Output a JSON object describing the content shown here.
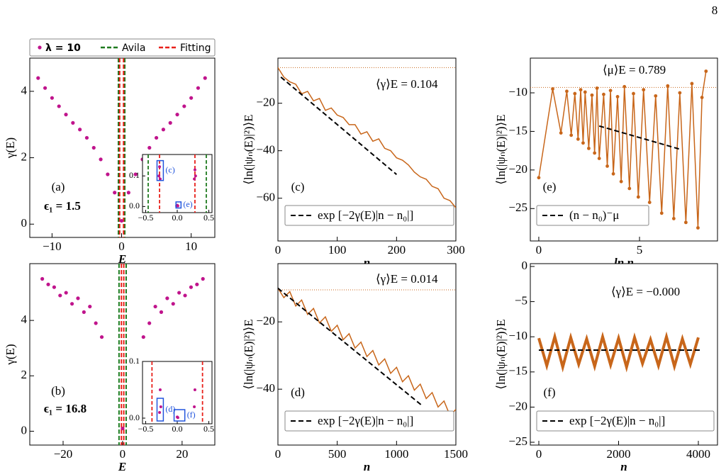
{
  "page_number": "8",
  "chart_data": [
    {
      "type": "scatter",
      "label": "(a)",
      "annotation": "ϵ₁ = 1.5",
      "xlabel": "E",
      "ylabel": "γ(E)",
      "xlim": [
        -13.2,
        13.4
      ],
      "ylim": [
        -0.4,
        5.0
      ],
      "xticks": [
        {
          "value": -10,
          "label": "−10"
        },
        0,
        10
      ],
      "yticks": [
        0,
        2,
        4
      ],
      "series": [
        {
          "name": "λ = 10",
          "color": "#c0148c",
          "x": [
            -12,
            -11,
            -10,
            -9,
            -8,
            -7,
            -6,
            -5,
            -4,
            -3,
            -2,
            -1,
            0,
            1,
            2,
            3,
            4,
            5,
            6,
            7,
            8,
            9,
            10,
            11,
            12
          ],
          "values": [
            4.4,
            4.1,
            3.8,
            3.55,
            3.3,
            3.05,
            2.85,
            2.6,
            2.3,
            1.95,
            1.5,
            0.95,
            0.1,
            0.95,
            1.5,
            1.95,
            2.3,
            2.6,
            2.85,
            3.05,
            3.3,
            3.55,
            3.8,
            4.1,
            4.4
          ]
        }
      ],
      "vlines": [
        {
          "name": "Avila",
          "color": "#1f7a1f",
          "x": [
            -0.46,
            0.46
          ]
        },
        {
          "name": "Fitting",
          "color": "#e8201a",
          "x": [
            -0.28,
            0.28
          ]
        }
      ],
      "inset": {
        "xlim": [
          -0.55,
          0.55
        ],
        "ylim": [
          -0.02,
          0.17
        ],
        "xticks": [
          {
            "value": -0.5,
            "label": "−0.5"
          },
          {
            "value": 0,
            "label": "0.0"
          },
          0.5
        ],
        "yticks": [
          {
            "value": 0,
            "label": "0.0"
          },
          0.1
        ],
        "x": [
          -0.29,
          -0.28,
          -0.27,
          -0.01,
          0.0,
          0.01,
          0.27,
          0.28,
          0.29
        ],
        "values": [
          0.1,
          0.13,
          0.09,
          0.002,
          0.004,
          0.002,
          0.09,
          0.12,
          0.1
        ],
        "boxes": [
          {
            "label": "(c)",
            "x": [
              -0.32,
              -0.22
            ],
            "y": [
              0.085,
              0.15
            ]
          },
          {
            "label": "(e)",
            "x": [
              -0.02,
              0.06
            ],
            "y": [
              -0.005,
              0.015
            ]
          }
        ]
      }
    },
    {
      "type": "scatter",
      "label": "(b)",
      "annotation": "ϵ₁ = 16.8",
      "xlabel": "E",
      "ylabel": "γ(E)",
      "xlim": [
        -31.2,
        31
      ],
      "ylim": [
        -0.5,
        6.05
      ],
      "xticks": [
        {
          "value": -20,
          "label": "−20"
        },
        0,
        20
      ],
      "yticks": [
        0,
        2,
        4
      ],
      "series": [
        {
          "color": "#c0148c",
          "x": [
            -27,
            -25,
            -23,
            -21,
            -19,
            -17,
            -15,
            -13,
            -11,
            -9,
            -7,
            0,
            7,
            9,
            11,
            13,
            15,
            17,
            19,
            21,
            23,
            25,
            27
          ],
          "values": [
            5.5,
            5.3,
            5.2,
            4.9,
            5.0,
            4.6,
            4.8,
            4.3,
            4.5,
            3.9,
            3.4,
            0.1,
            3.4,
            3.9,
            4.5,
            4.3,
            4.8,
            4.6,
            5.0,
            4.9,
            5.2,
            5.3,
            5.5
          ]
        }
      ],
      "vlines": [
        {
          "color": "#1f7a1f",
          "x": [
            -1.2,
            1.2
          ]
        },
        {
          "color": "#e8201a",
          "x": [
            -0.4,
            0.4
          ]
        }
      ],
      "inset": {
        "xlim": [
          -0.55,
          0.55
        ],
        "ylim": [
          -0.01,
          0.1
        ],
        "xticks": [
          {
            "value": -0.5,
            "label": "−0.5"
          },
          {
            "value": 0,
            "label": "0.0"
          },
          0.5
        ],
        "yticks": [
          {
            "value": 0,
            "label": "0.0"
          },
          0.1
        ],
        "x": [
          -0.28,
          -0.27,
          -0.26,
          0.0,
          0.01,
          0.27,
          0.28
        ],
        "values": [
          0.01,
          0.05,
          0.02,
          0.002,
          0.001,
          0.02,
          0.05
        ],
        "boxes": [
          {
            "label": "(d)",
            "x": [
              -0.32,
              -0.22
            ],
            "y": [
              -0.005,
              0.035
            ]
          },
          {
            "label": "(f)",
            "x": [
              -0.05,
              0.12
            ],
            "y": [
              -0.005,
              0.015
            ]
          }
        ]
      }
    },
    {
      "type": "line",
      "label": "(c)",
      "annotation": "⟨γ⟩E = 0.104",
      "xlabel": "n",
      "ylabel": "⟨ln(|ψₙ(E)|²)⟩E",
      "xlim": [
        0,
        300
      ],
      "ylim": [
        -78,
        -1
      ],
      "xticks": [
        0,
        100,
        200,
        300
      ],
      "yticks": [
        {
          "value": -20,
          "label": "−20"
        },
        {
          "value": -40,
          "label": "−40"
        },
        {
          "value": -60,
          "label": "−60"
        }
      ],
      "series": [
        {
          "color": "#c8661a",
          "x": [
            0,
            10,
            20,
            30,
            40,
            50,
            60,
            70,
            80,
            90,
            100,
            110,
            120,
            130,
            140,
            150,
            160,
            170,
            180,
            190,
            200,
            210,
            220,
            230,
            240,
            250,
            260,
            270,
            280,
            290,
            300
          ],
          "values": [
            -5,
            -9,
            -11,
            -12,
            -16,
            -15,
            -19,
            -18,
            -23,
            -22,
            -25,
            -26,
            -29,
            -29,
            -33,
            -32,
            -36,
            -35,
            -39,
            -40,
            -43,
            -44,
            -46,
            -49,
            -51,
            -52,
            -55,
            -56,
            -60,
            -61,
            -64
          ]
        }
      ],
      "fit": {
        "name": "exp [−2γ(E)|n − n₀|]",
        "x": [
          5,
          200
        ],
        "values": [
          -9,
          -50
        ]
      },
      "reference": -5
    },
    {
      "type": "line",
      "label": "(d)",
      "annotation": "⟨γ⟩E = 0.014",
      "xlabel": "n",
      "ylabel": "⟨ln(|ψₙ(E)|²)⟩E",
      "xlim": [
        0,
        1500
      ],
      "ylim": [
        -56.6,
        -2.7
      ],
      "xticks": [
        0,
        500,
        1000,
        1500
      ],
      "yticks": [
        {
          "value": -20,
          "label": "−20"
        },
        {
          "value": -40,
          "label": "−40"
        }
      ],
      "series": [
        {
          "color": "#c8661a",
          "x": [
            0,
            50,
            100,
            150,
            200,
            250,
            300,
            350,
            400,
            450,
            500,
            550,
            600,
            650,
            700,
            750,
            800,
            850,
            900,
            950,
            1000,
            1050,
            1100,
            1150,
            1200,
            1250,
            1300,
            1350,
            1400,
            1450,
            1500
          ],
          "values": [
            -10,
            -12.8,
            -11,
            -15.3,
            -13.5,
            -17.8,
            -16,
            -20.3,
            -18.5,
            -22.8,
            -21,
            -25.3,
            -23.5,
            -27.8,
            -26,
            -30.3,
            -28.5,
            -32.8,
            -31,
            -35.3,
            -33.5,
            -37.8,
            -36,
            -40.3,
            -38.5,
            -42.8,
            -41,
            -45.3,
            -43.5,
            -47.8,
            -46
          ]
        }
      ],
      "fit": {
        "name": "exp [−2γ(E)|n − n₀|]",
        "x": [
          0,
          1220
        ],
        "values": [
          -10,
          -45
        ]
      },
      "reference": -10.5
    },
    {
      "type": "line",
      "markers": true,
      "label": "(e)",
      "annotation": "⟨μ⟩E = 0.789",
      "xlabel": "ln n",
      "ylabel": "⟨ln(|ψₙ(E)|²)⟩E",
      "xlim": [
        -0.42,
        8.87
      ],
      "ylim": [
        -29.2,
        -5.5
      ],
      "xticks": [
        0,
        5
      ],
      "yticks": [
        {
          "value": -10,
          "label": "−10"
        },
        {
          "value": -15,
          "label": "−15"
        },
        {
          "value": -20,
          "label": "−20"
        },
        {
          "value": -25,
          "label": "−25"
        }
      ],
      "series": [
        {
          "color": "#c8661a",
          "x": [
            0,
            0.69,
            1.1,
            1.39,
            1.61,
            1.79,
            1.95,
            2.08,
            2.2,
            2.3,
            2.48,
            2.64,
            2.77,
            2.89,
            3.0,
            3.22,
            3.4,
            3.56,
            3.7,
            3.91,
            4.09,
            4.25,
            4.5,
            4.7,
            4.94,
            5.2,
            5.5,
            5.8,
            6.1,
            6.4,
            6.7,
            7.0,
            7.3,
            7.6,
            7.9,
            8.1,
            8.3
          ],
          "values": [
            -21,
            -9.5,
            -15.2,
            -9.8,
            -15.5,
            -10.1,
            -16,
            -9.6,
            -16.5,
            -9.9,
            -17.2,
            -10.3,
            -17.8,
            -9.4,
            -18.5,
            -10.2,
            -19.5,
            -9.7,
            -20.5,
            -10.5,
            -21.5,
            -9.2,
            -22.4,
            -10.1,
            -23.5,
            -9.6,
            -24.2,
            -10.4,
            -25.6,
            -9.1,
            -26.3,
            -10,
            -26.8,
            -8.8,
            -27.5,
            -10.6,
            -7.2
          ]
        }
      ],
      "fit": {
        "name": "(n − n₀)⁻μ",
        "x": [
          3,
          7
        ],
        "values": [
          -14.3,
          -17.3
        ]
      },
      "reference": -9.3
    },
    {
      "type": "line",
      "label": "(f)",
      "annotation": "⟨γ⟩E = −0.000",
      "xlabel": "n",
      "ylabel": "⟨ln(|ψₙ(E)|²)⟩E",
      "xlim": [
        -213,
        4480
      ],
      "ylim": [
        -25.4,
        0.4
      ],
      "xticks": [
        0,
        2000,
        4000
      ],
      "yticks": [
        0,
        {
          "value": -5,
          "label": "−5"
        },
        {
          "value": -10,
          "label": "−10"
        },
        {
          "value": -15,
          "label": "−15"
        },
        {
          "value": -20,
          "label": "−20"
        },
        {
          "value": -25,
          "label": "−25"
        }
      ],
      "series": [
        {
          "color": "#c8661a",
          "x": [
            0,
            200,
            400,
            600,
            800,
            1000,
            1200,
            1400,
            1600,
            1800,
            2000,
            2200,
            2400,
            2600,
            2800,
            3000,
            3200,
            3400,
            3600,
            3800,
            4000
          ],
          "values": [
            -10.2,
            -14.1,
            -10,
            -14.3,
            -10.1,
            -13.9,
            -10.3,
            -14.2,
            -10,
            -14,
            -10.2,
            -14.3,
            -10.1,
            -13.8,
            -10.4,
            -14.1,
            -10,
            -14.2,
            -10.3,
            -13.9,
            -10.1
          ]
        }
      ],
      "fit": {
        "name": "exp [−2γ(E)|n − n₀|]",
        "x": [
          0,
          4100
        ],
        "values": [
          -11.9,
          -11.9
        ]
      }
    }
  ]
}
